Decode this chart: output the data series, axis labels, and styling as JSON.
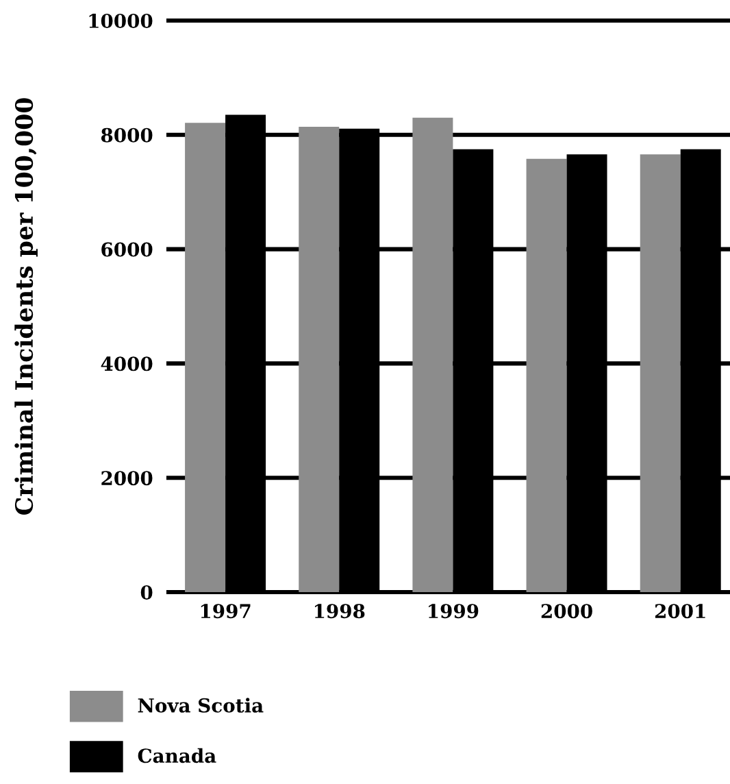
{
  "chart_data": {
    "type": "bar",
    "ylabel": "Criminal Incidents per 100,000",
    "categories": [
      "1997",
      "1998",
      "1999",
      "2000",
      "2001"
    ],
    "series": [
      {
        "name": "Nova Scotia",
        "color": "#8c8c8c",
        "values": [
          8210,
          8140,
          8300,
          7580,
          7660
        ]
      },
      {
        "name": "Canada",
        "color": "#000000",
        "values": [
          8350,
          8110,
          7750,
          7660,
          7750
        ]
      }
    ],
    "ylim": [
      0,
      10000
    ],
    "yticks": [
      0,
      2000,
      4000,
      6000,
      8000,
      10000
    ],
    "grid": "y",
    "legend": "bottom left"
  }
}
